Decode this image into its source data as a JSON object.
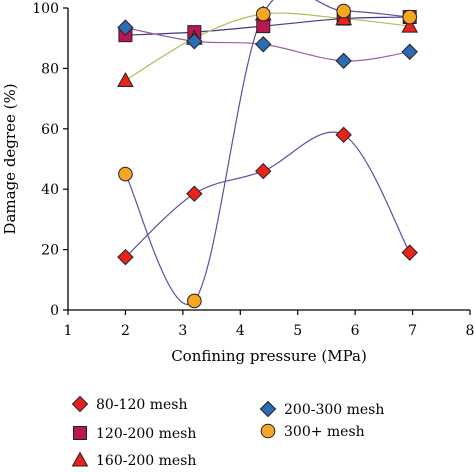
{
  "chart_data": {
    "type": "scatter",
    "title": "",
    "xlabel": "Confining pressure (MPa)",
    "ylabel": "Damage degree (%)",
    "xlim": [
      1,
      8
    ],
    "ylim": [
      0,
      100
    ],
    "xticks": [
      "1",
      "2",
      "3",
      "4",
      "5",
      "6",
      "7",
      "8"
    ],
    "yticks": [
      "0",
      "20",
      "40",
      "60",
      "80",
      "100"
    ],
    "legend_position": "bottom",
    "series": [
      {
        "name": "80-120 mesh",
        "marker": "diamond",
        "color": "#e8231c",
        "line_color": "#5b4ea0",
        "points": [
          [
            2.0,
            17.5
          ],
          [
            3.2,
            38.5
          ],
          [
            4.4,
            46
          ],
          [
            5.8,
            58
          ],
          [
            6.95,
            19
          ]
        ]
      },
      {
        "name": "120-200 mesh",
        "marker": "square",
        "color": "#b8174f",
        "line_color": "#3a3a8a",
        "points": [
          [
            2.0,
            91
          ],
          [
            3.2,
            92
          ],
          [
            4.4,
            94
          ],
          [
            5.8,
            96.5
          ],
          [
            6.95,
            97
          ]
        ]
      },
      {
        "name": "160-200 mesh",
        "marker": "triangle",
        "color": "#e8231c",
        "line_color": "#a8c25a",
        "points": [
          [
            2.0,
            76
          ],
          [
            3.2,
            90
          ],
          [
            4.4,
            98
          ],
          [
            5.8,
            96.5
          ],
          [
            6.95,
            94
          ]
        ]
      },
      {
        "name": "200-300 mesh",
        "marker": "diamond",
        "color": "#2e6bb5",
        "line_color": "#9b5fa8",
        "points": [
          [
            2.0,
            93.5
          ],
          [
            3.2,
            89
          ],
          [
            4.4,
            88
          ],
          [
            5.8,
            82.5
          ],
          [
            6.95,
            85.5
          ]
        ]
      },
      {
        "name": "300+ mesh",
        "marker": "circle",
        "color": "#f5a623",
        "line_color": "#5b4ea0",
        "points": [
          [
            2.0,
            45
          ],
          [
            3.2,
            3
          ],
          [
            4.4,
            98
          ],
          [
            5.8,
            99
          ],
          [
            6.95,
            97
          ]
        ]
      }
    ]
  },
  "colors": {
    "axis": "#000000",
    "marker_stroke": "#222222"
  }
}
